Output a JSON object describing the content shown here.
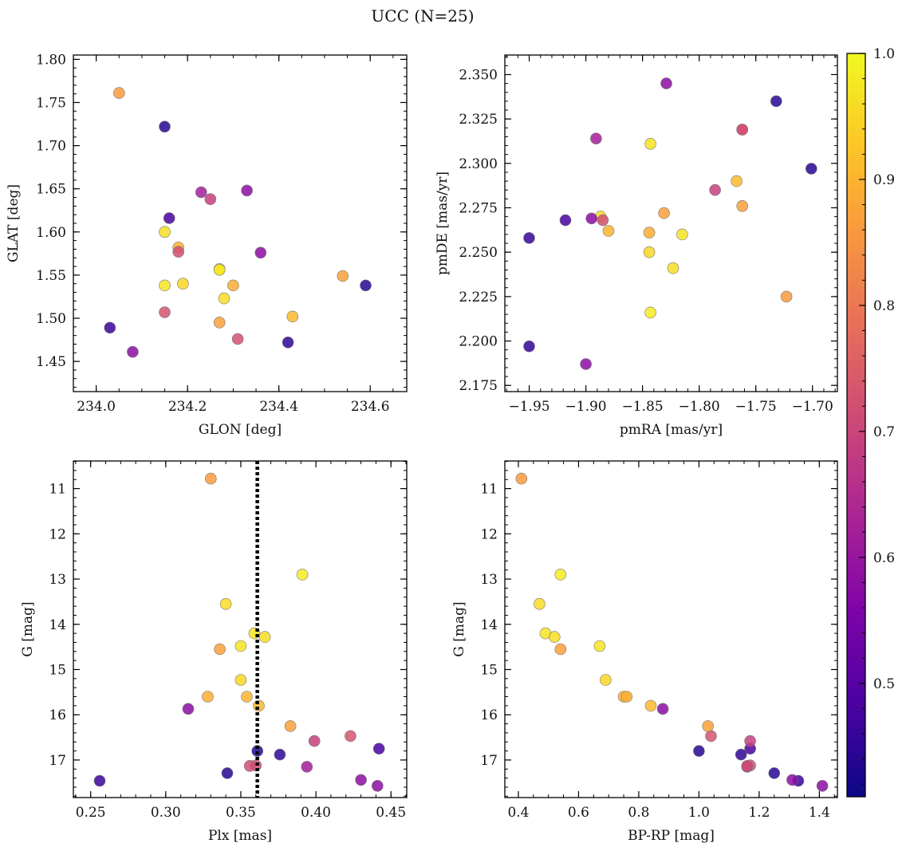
{
  "chart_data": {
    "type": "scatter",
    "title": "UCC (N=25)",
    "colorbar": {
      "colormap": "plasma",
      "range": [
        0.41,
        1.0
      ],
      "ticks": [
        0.5,
        0.6,
        0.7,
        0.8,
        0.9,
        1.0
      ],
      "tick_labels": [
        "0.5",
        "0.6",
        "0.7",
        "0.8",
        "0.9",
        "1.0"
      ]
    },
    "stars": [
      {
        "glon": 234.05,
        "glat": 1.761,
        "pmra": -1.723,
        "pmde": 2.225,
        "plx": 0.33,
        "g": 10.78,
        "bprp": 0.41,
        "p": 0.86
      },
      {
        "glon": 234.15,
        "glat": 1.722,
        "pmra": -1.732,
        "pmde": 2.335,
        "plx": 0.361,
        "g": 16.8,
        "bprp": 1.0,
        "p": 0.44
      },
      {
        "glon": 234.03,
        "glat": 1.489,
        "pmra": -1.95,
        "pmde": 2.258,
        "plx": 0.256,
        "g": 17.46,
        "bprp": 1.33,
        "p": 0.46
      },
      {
        "glon": 234.08,
        "glat": 1.461,
        "pmra": -1.9,
        "pmde": 2.187,
        "plx": 0.441,
        "g": 17.57,
        "bprp": 1.41,
        "p": 0.58
      },
      {
        "glon": 234.16,
        "glat": 1.616,
        "pmra": -1.918,
        "pmde": 2.268,
        "plx": 0.442,
        "g": 16.75,
        "bprp": 1.17,
        "p": 0.48
      },
      {
        "glon": 234.15,
        "glat": 1.6,
        "pmra": -1.887,
        "pmde": 2.27,
        "plx": 0.34,
        "g": 13.55,
        "bprp": 0.47,
        "p": 0.96
      },
      {
        "glon": 234.18,
        "glat": 1.582,
        "pmra": -1.88,
        "pmde": 2.262,
        "plx": 0.354,
        "g": 15.6,
        "bprp": 0.75,
        "p": 0.9
      },
      {
        "glon": 234.18,
        "glat": 1.577,
        "pmra": -1.885,
        "pmde": 2.268,
        "plx": 0.36,
        "g": 17.12,
        "bprp": 1.17,
        "p": 0.72
      },
      {
        "glon": 234.15,
        "glat": 1.538,
        "pmra": -1.843,
        "pmde": 2.311,
        "plx": 0.35,
        "g": 14.48,
        "bprp": 0.67,
        "p": 0.97
      },
      {
        "glon": 234.15,
        "glat": 1.507,
        "pmra": -1.762,
        "pmde": 2.319,
        "plx": 0.423,
        "g": 16.47,
        "bprp": 1.04,
        "p": 0.73
      },
      {
        "glon": 234.19,
        "glat": 1.54,
        "pmra": -1.844,
        "pmde": 2.25,
        "plx": 0.35,
        "g": 15.23,
        "bprp": 0.69,
        "p": 0.95
      },
      {
        "glon": 234.23,
        "glat": 1.646,
        "pmra": -1.891,
        "pmde": 2.314,
        "plx": 0.394,
        "g": 17.15,
        "bprp": 1.16,
        "p": 0.62
      },
      {
        "glon": 234.25,
        "glat": 1.638,
        "pmra": -1.786,
        "pmde": 2.285,
        "plx": 0.399,
        "g": 16.58,
        "bprp": 1.17,
        "p": 0.69
      },
      {
        "glon": 234.27,
        "glat": 1.557,
        "pmra": -1.843,
        "pmde": 2.216,
        "plx": 0.391,
        "g": 12.9,
        "bprp": 0.54,
        "p": 0.98
      },
      {
        "glon": 234.27,
        "glat": 1.556,
        "pmra": -1.815,
        "pmde": 2.26,
        "plx": 0.359,
        "g": 14.2,
        "bprp": 0.49,
        "p": 0.97
      },
      {
        "glon": 234.27,
        "glat": 1.495,
        "pmra": -1.831,
        "pmde": 2.272,
        "plx": 0.383,
        "g": 16.25,
        "bprp": 1.03,
        "p": 0.87
      },
      {
        "glon": 234.28,
        "glat": 1.523,
        "pmra": -1.823,
        "pmde": 2.241,
        "plx": 0.366,
        "g": 14.28,
        "bprp": 0.52,
        "p": 0.96
      },
      {
        "glon": 234.3,
        "glat": 1.538,
        "pmra": -1.844,
        "pmde": 2.261,
        "plx": 0.328,
        "g": 15.6,
        "bprp": 0.76,
        "p": 0.89
      },
      {
        "glon": 234.31,
        "glat": 1.476,
        "pmra": -1.762,
        "pmde": 2.319,
        "plx": 0.356,
        "g": 17.13,
        "bprp": 1.16,
        "p": 0.72
      },
      {
        "glon": 234.33,
        "glat": 1.648,
        "pmra": -1.895,
        "pmde": 2.269,
        "plx": 0.315,
        "g": 15.87,
        "bprp": 0.88,
        "p": 0.58
      },
      {
        "glon": 234.36,
        "glat": 1.576,
        "pmra": -1.829,
        "pmde": 2.345,
        "plx": 0.43,
        "g": 17.44,
        "bprp": 1.31,
        "p": 0.58
      },
      {
        "glon": 234.42,
        "glat": 1.472,
        "pmra": -1.95,
        "pmde": 2.197,
        "plx": 0.376,
        "g": 16.88,
        "bprp": 1.14,
        "p": 0.45
      },
      {
        "glon": 234.43,
        "glat": 1.502,
        "pmra": -1.767,
        "pmde": 2.29,
        "plx": 0.362,
        "g": 15.8,
        "bprp": 0.84,
        "p": 0.91
      },
      {
        "glon": 234.54,
        "glat": 1.549,
        "pmra": -1.762,
        "pmde": 2.276,
        "plx": 0.336,
        "g": 14.55,
        "bprp": 0.54,
        "p": 0.87
      },
      {
        "glon": 234.59,
        "glat": 1.538,
        "pmra": -1.701,
        "pmde": 2.297,
        "plx": 0.341,
        "g": 17.29,
        "bprp": 1.25,
        "p": 0.44
      }
    ],
    "panels": [
      {
        "id": "sky",
        "xkey": "glon",
        "ykey": "glat",
        "xlabel": "GLON [deg]",
        "ylabel": "GLAT [deg]",
        "xlim": [
          233.95,
          234.68
        ],
        "ylim": [
          1.415,
          1.805
        ],
        "y_inverted": false,
        "xticks": [
          234.0,
          234.2,
          234.4,
          234.6
        ],
        "xtick_labels": [
          "234.0",
          "234.2",
          "234.4",
          "234.6"
        ],
        "yticks": [
          1.45,
          1.5,
          1.55,
          1.6,
          1.65,
          1.7,
          1.75,
          1.8
        ],
        "ytick_labels": [
          "1.45",
          "1.50",
          "1.55",
          "1.60",
          "1.65",
          "1.70",
          "1.75",
          "1.80"
        ],
        "xminor": 0.05,
        "yminor": 0.01
      },
      {
        "id": "pm",
        "xkey": "pmra",
        "ykey": "pmde",
        "xlabel": "pmRA [mas/yr]",
        "ylabel": "pmDE [mas/yr]",
        "xlim": [
          -1.9715,
          -1.678
        ],
        "ylim": [
          2.1715,
          2.361
        ],
        "y_inverted": false,
        "xticks": [
          -1.95,
          -1.9,
          -1.85,
          -1.8,
          -1.75,
          -1.7
        ],
        "xtick_labels": [
          "−1.95",
          "−1.90",
          "−1.85",
          "−1.80",
          "−1.75",
          "−1.70"
        ],
        "yticks": [
          2.175,
          2.2,
          2.225,
          2.25,
          2.275,
          2.3,
          2.325,
          2.35
        ],
        "ytick_labels": [
          "2.175",
          "2.200",
          "2.225",
          "2.250",
          "2.275",
          "2.300",
          "2.325",
          "2.350"
        ],
        "xminor": 0.01,
        "yminor": 0.005
      },
      {
        "id": "plx",
        "xkey": "plx",
        "ykey": "g",
        "xlabel": "Plx [mas]",
        "ylabel": "G [mag]",
        "xlim": [
          0.2385,
          0.4605
        ],
        "ylim": [
          10.39,
          17.83
        ],
        "y_inverted": true,
        "xticks": [
          0.25,
          0.3,
          0.35,
          0.4,
          0.45
        ],
        "xtick_labels": [
          "0.25",
          "0.30",
          "0.35",
          "0.40",
          "0.45"
        ],
        "yticks": [
          11,
          12,
          13,
          14,
          15,
          16,
          17
        ],
        "ytick_labels": [
          "11",
          "12",
          "13",
          "14",
          "15",
          "16",
          "17"
        ],
        "xminor": 0.01,
        "yminor": 0.2,
        "vline": 0.361
      },
      {
        "id": "cmd",
        "xkey": "bprp",
        "ykey": "g",
        "xlabel": "BP-RP [mag]",
        "ylabel": "G [mag]",
        "xlim": [
          0.355,
          1.46
        ],
        "ylim": [
          10.39,
          17.83
        ],
        "y_inverted": true,
        "xticks": [
          0.4,
          0.6,
          0.8,
          1.0,
          1.2,
          1.4
        ],
        "xtick_labels": [
          "0.4",
          "0.6",
          "0.8",
          "1.0",
          "1.2",
          "1.4"
        ],
        "yticks": [
          11,
          12,
          13,
          14,
          15,
          16,
          17
        ],
        "ytick_labels": [
          "11",
          "12",
          "13",
          "14",
          "15",
          "16",
          "17"
        ],
        "xminor": 0.05,
        "yminor": 0.2
      }
    ]
  }
}
